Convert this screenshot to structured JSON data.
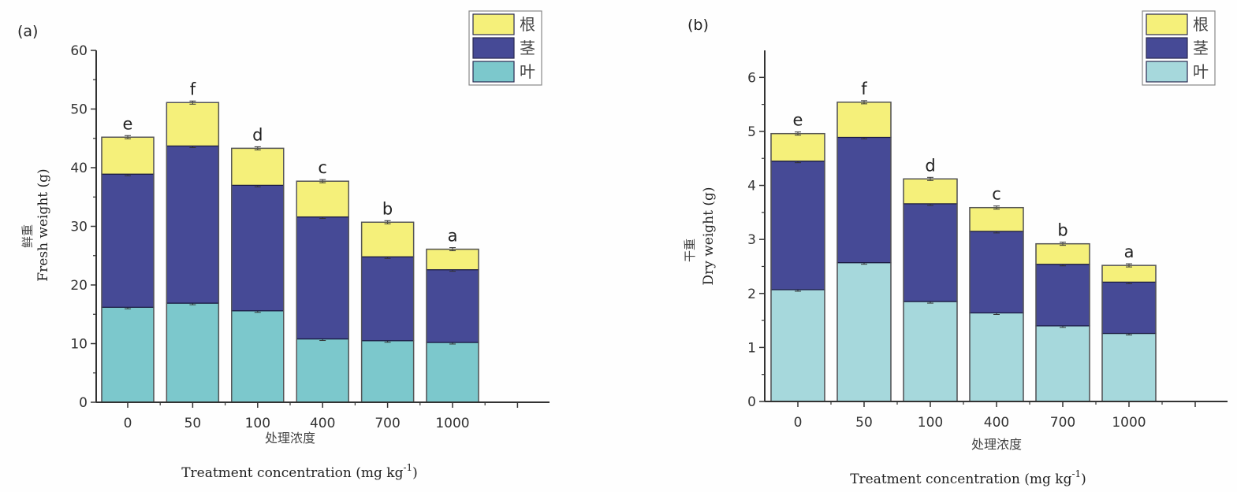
{
  "chart_data": [
    {
      "type": "bar",
      "stacked": true,
      "panel_label": "(a)",
      "categories": [
        "0",
        "50",
        "100",
        "400",
        "700",
        "1000"
      ],
      "series": [
        {
          "name": "叶",
          "values": [
            16.2,
            16.9,
            15.6,
            10.8,
            10.5,
            10.2
          ]
        },
        {
          "name": "茎",
          "values": [
            22.7,
            26.8,
            21.4,
            20.8,
            14.3,
            12.4
          ]
        },
        {
          "name": "根",
          "values": [
            6.3,
            7.4,
            6.3,
            6.1,
            5.9,
            3.5
          ]
        }
      ],
      "totals": [
        45.2,
        51.1,
        43.3,
        37.7,
        30.7,
        26.1
      ],
      "significance": [
        "e",
        "f",
        "d",
        "c",
        "b",
        "a"
      ],
      "legend": [
        "根",
        "茎",
        "叶"
      ],
      "legend_position": "top-right",
      "ylabel_cn": "鲜重",
      "ylabel": "Fresh weight (g)",
      "xlabel_cn": "处理浓度",
      "xlabel": "Treatment concentration (mg kg",
      "xlabel_sup": "-1",
      "xlabel_end": ")",
      "ylim": [
        0,
        60
      ],
      "yticks": [
        "0",
        "10",
        "20",
        "30",
        "40",
        "50",
        "60"
      ],
      "ytick_values": [
        0,
        10,
        20,
        30,
        40,
        50,
        60
      ]
    },
    {
      "type": "bar",
      "stacked": true,
      "panel_label": "(b)",
      "categories": [
        "0",
        "50",
        "100",
        "400",
        "700",
        "1000"
      ],
      "series": [
        {
          "name": "叶",
          "values": [
            2.07,
            2.57,
            1.85,
            1.64,
            1.4,
            1.26
          ]
        },
        {
          "name": "茎",
          "values": [
            2.38,
            2.32,
            1.81,
            1.51,
            1.14,
            0.95
          ]
        },
        {
          "name": "根",
          "values": [
            0.51,
            0.65,
            0.46,
            0.44,
            0.38,
            0.31
          ]
        }
      ],
      "totals": [
        4.96,
        5.54,
        4.12,
        3.59,
        2.92,
        2.52
      ],
      "significance": [
        "e",
        "f",
        "d",
        "c",
        "b",
        "a"
      ],
      "legend": [
        "根",
        "茎",
        "叶"
      ],
      "legend_position": "top-right",
      "ylabel_cn": "干重",
      "ylabel": "Dry weight (g)",
      "xlabel_cn": "处理浓度",
      "xlabel": "Treatment concentration (mg kg",
      "xlabel_sup": "-1",
      "xlabel_end": ")",
      "ylim": [
        0,
        6.5
      ],
      "yticks": [
        "0",
        "1",
        "2",
        "3",
        "4",
        "5",
        "6"
      ],
      "ytick_values": [
        0,
        1,
        2,
        3,
        4,
        5,
        6
      ]
    }
  ],
  "colors": {
    "root": "#f5f07a",
    "stem_a": "#464a96",
    "stem_b": "#464a96",
    "leaf_a": "#7cc8cc",
    "leaf_b": "#a6d8dc",
    "axis": "#333333",
    "outline": "#555555"
  }
}
